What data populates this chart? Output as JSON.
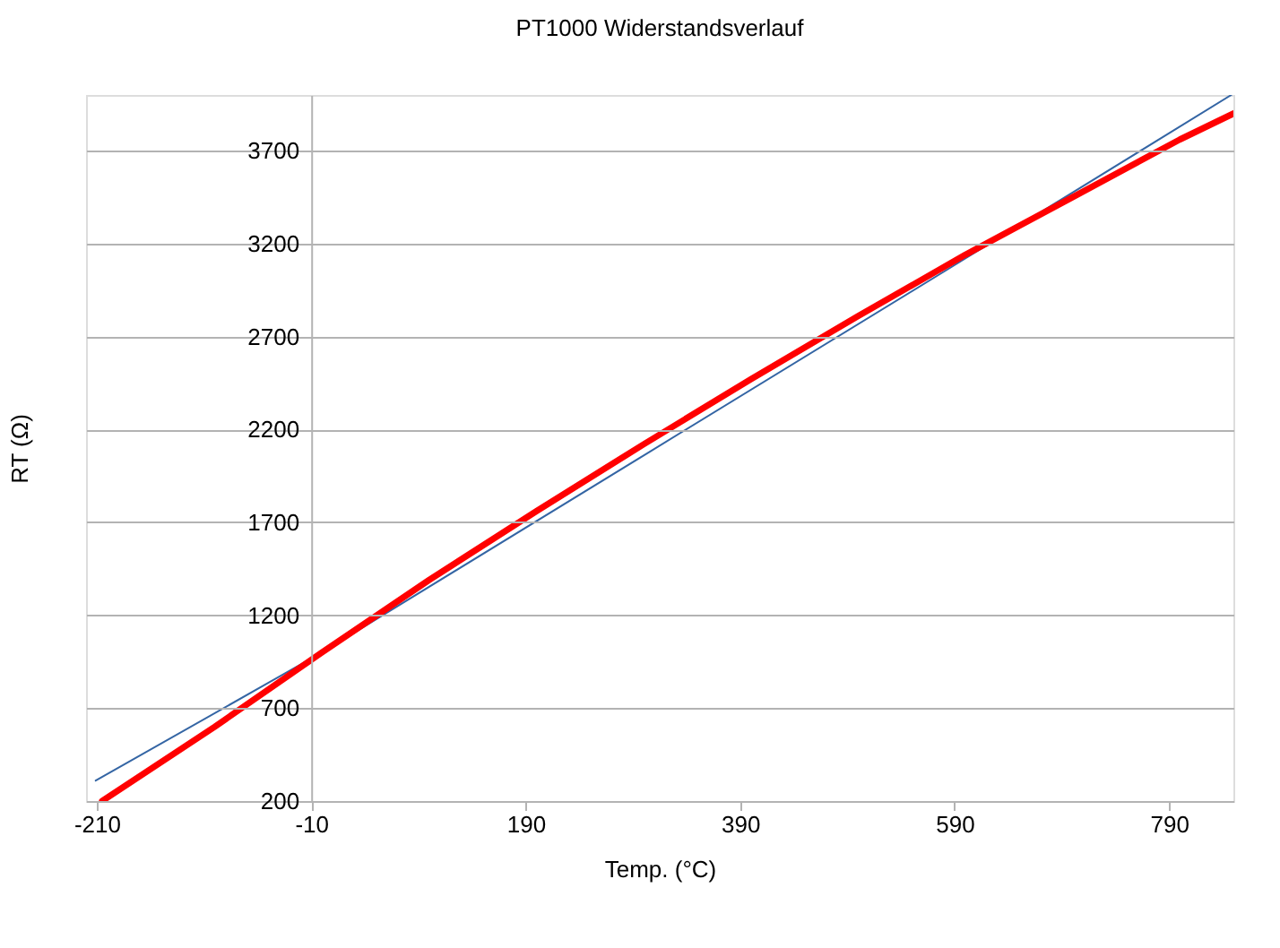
{
  "chart_data": {
    "type": "line",
    "title": "PT1000 Widerstandsverlauf",
    "xlabel": "Temp. (°C)",
    "ylabel": "RT (Ω)",
    "xlim": [
      -220,
      850
    ],
    "ylim": [
      200,
      4000
    ],
    "xticks": [
      -210,
      -10,
      190,
      390,
      590,
      790
    ],
    "yticks": [
      200,
      700,
      1200,
      1700,
      2200,
      2700,
      3200,
      3700
    ],
    "grid": "y",
    "marker": "none",
    "line_style": "solid",
    "series": [
      {
        "color": "#3465a4",
        "x": [
          -211,
          0,
          300,
          600,
          848
        ],
        "values": [
          310,
          1000,
          2060,
          3120,
          4000
        ]
      },
      {
        "color": "#ff0000",
        "x": [
          -205,
          -100,
          0,
          100,
          200,
          300,
          400,
          500,
          600,
          700,
          800,
          850
        ],
        "values": [
          200,
          600,
          1000,
          1390,
          1760,
          2120,
          2470,
          2810,
          3140,
          3450,
          3760,
          3900
        ]
      }
    ]
  }
}
